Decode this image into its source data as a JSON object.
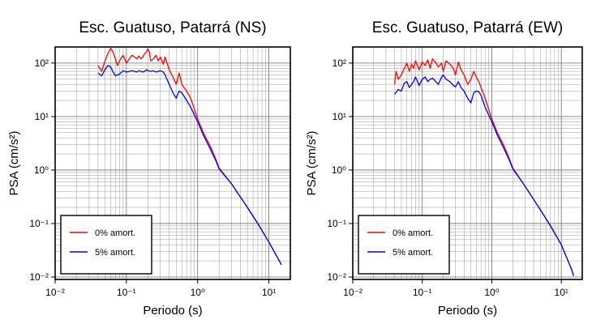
{
  "chart_data": [
    {
      "type": "line",
      "title": "Esc. Guatuso, Patarrá (NS)",
      "xlabel": "Periodo (s)",
      "ylabel": "PSA (cm/s²)",
      "xscale": "log",
      "yscale": "log",
      "xlim": [
        0.01,
        20
      ],
      "ylim": [
        0.009,
        200
      ],
      "xticks": [
        "10⁻²",
        "10⁻¹",
        "10⁰",
        "10¹"
      ],
      "yticks": [
        "10⁻²",
        "10⁻¹",
        "10⁰",
        "10¹",
        "10²"
      ],
      "grid": true,
      "legend_position": "bottom-left",
      "series": [
        {
          "name": "0% amort.",
          "color": "#ff0000",
          "x": [
            0.04,
            0.045,
            0.05,
            0.055,
            0.06,
            0.065,
            0.07,
            0.075,
            0.08,
            0.09,
            0.1,
            0.11,
            0.12,
            0.13,
            0.14,
            0.15,
            0.16,
            0.17,
            0.18,
            0.19,
            0.2,
            0.21,
            0.22,
            0.24,
            0.26,
            0.28,
            0.3,
            0.33,
            0.35,
            0.4,
            0.45,
            0.5,
            0.55,
            0.6,
            0.7,
            0.8,
            1.0,
            1.2,
            1.5,
            1.8,
            2,
            3,
            5,
            7,
            10,
            15
          ],
          "y": [
            90,
            70,
            110,
            150,
            190,
            160,
            120,
            90,
            110,
            140,
            100,
            120,
            140,
            130,
            120,
            135,
            120,
            130,
            150,
            160,
            185,
            160,
            110,
            120,
            140,
            110,
            130,
            95,
            130,
            75,
            55,
            40,
            65,
            40,
            30,
            22,
            9,
            5,
            2.8,
            1.6,
            1.1,
            0.55,
            0.2,
            0.1,
            0.045,
            0.017
          ]
        },
        {
          "name": "5% amort.",
          "color": "#0000ff",
          "x": [
            0.04,
            0.045,
            0.05,
            0.055,
            0.06,
            0.065,
            0.07,
            0.08,
            0.09,
            0.1,
            0.11,
            0.12,
            0.13,
            0.14,
            0.15,
            0.16,
            0.17,
            0.18,
            0.19,
            0.2,
            0.22,
            0.24,
            0.26,
            0.28,
            0.3,
            0.33,
            0.35,
            0.4,
            0.45,
            0.5,
            0.55,
            0.6,
            0.7,
            0.8,
            1.0,
            1.2,
            1.5,
            1.8,
            2,
            3,
            5,
            7,
            10,
            15
          ],
          "y": [
            65,
            58,
            75,
            90,
            85,
            68,
            58,
            62,
            72,
            68,
            70,
            72,
            70,
            68,
            72,
            70,
            68,
            70,
            75,
            72,
            70,
            72,
            68,
            70,
            72,
            68,
            60,
            40,
            28,
            22,
            30,
            28,
            20,
            15,
            8,
            4.5,
            2.5,
            1.5,
            1.05,
            0.55,
            0.2,
            0.1,
            0.045,
            0.017
          ]
        }
      ]
    },
    {
      "type": "line",
      "title": "Esc. Guatuso, Patarrá (EW)",
      "xlabel": "Periodo (s)",
      "ylabel": "PSA (cm/s²)",
      "xscale": "log",
      "yscale": "log",
      "xlim": [
        0.01,
        20
      ],
      "ylim": [
        0.009,
        200
      ],
      "xticks": [
        "10⁻²",
        "10⁻¹",
        "10⁰",
        "10¹"
      ],
      "yticks": [
        "10⁻²",
        "10⁻¹",
        "10⁰",
        "10¹",
        "10²"
      ],
      "grid": true,
      "legend_position": "bottom-left",
      "series": [
        {
          "name": "0% amort.",
          "color": "#ff0000",
          "x": [
            0.04,
            0.042,
            0.045,
            0.05,
            0.055,
            0.06,
            0.065,
            0.07,
            0.075,
            0.08,
            0.09,
            0.1,
            0.11,
            0.12,
            0.13,
            0.14,
            0.15,
            0.17,
            0.19,
            0.2,
            0.22,
            0.25,
            0.28,
            0.3,
            0.33,
            0.36,
            0.4,
            0.45,
            0.5,
            0.55,
            0.6,
            0.65,
            0.7,
            0.8,
            1.0,
            1.2,
            1.5,
            1.8,
            2,
            3,
            5,
            7,
            10,
            14,
            15
          ],
          "y": [
            40,
            70,
            50,
            60,
            80,
            100,
            70,
            95,
            80,
            110,
            75,
            105,
            90,
            115,
            80,
            120,
            110,
            85,
            100,
            70,
            110,
            95,
            80,
            60,
            105,
            75,
            60,
            40,
            50,
            70,
            55,
            45,
            35,
            22,
            9,
            5,
            2.8,
            1.6,
            1.1,
            0.5,
            0.18,
            0.09,
            0.04,
            0.014,
            0.0105
          ]
        },
        {
          "name": "5% amort.",
          "color": "#0000ff",
          "x": [
            0.04,
            0.045,
            0.05,
            0.055,
            0.06,
            0.065,
            0.07,
            0.075,
            0.08,
            0.09,
            0.1,
            0.11,
            0.12,
            0.13,
            0.14,
            0.15,
            0.17,
            0.19,
            0.2,
            0.22,
            0.25,
            0.28,
            0.3,
            0.33,
            0.36,
            0.4,
            0.45,
            0.5,
            0.55,
            0.6,
            0.65,
            0.7,
            0.8,
            1.0,
            1.2,
            1.5,
            1.8,
            2,
            3,
            5,
            7,
            10,
            14,
            15
          ],
          "y": [
            26,
            32,
            30,
            42,
            45,
            35,
            40,
            45,
            55,
            38,
            50,
            55,
            45,
            50,
            52,
            48,
            40,
            55,
            60,
            50,
            45,
            38,
            36,
            45,
            35,
            30,
            22,
            18,
            28,
            30,
            29,
            25,
            15,
            8,
            4.5,
            2.5,
            1.5,
            1.05,
            0.5,
            0.18,
            0.09,
            0.04,
            0.014,
            0.0105
          ]
        }
      ]
    }
  ]
}
